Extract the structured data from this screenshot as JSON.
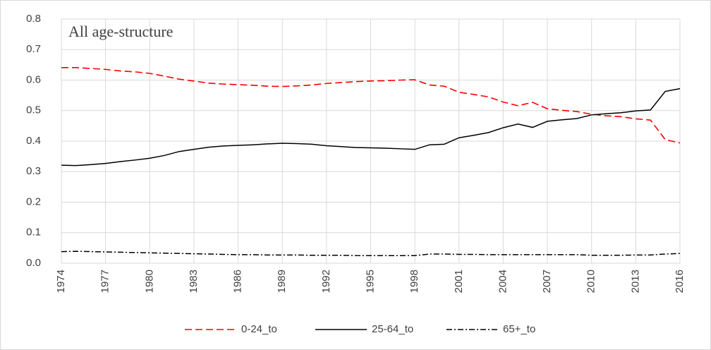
{
  "chart_data": {
    "type": "line",
    "annotation": "All age-structure",
    "x": [
      1974,
      1975,
      1976,
      1977,
      1978,
      1979,
      1980,
      1981,
      1982,
      1983,
      1984,
      1985,
      1986,
      1987,
      1988,
      1989,
      1990,
      1991,
      1992,
      1993,
      1994,
      1995,
      1996,
      1997,
      1998,
      1999,
      2000,
      2001,
      2002,
      2003,
      2004,
      2005,
      2006,
      2007,
      2008,
      2009,
      2010,
      2011,
      2012,
      2013,
      2014,
      2015,
      2016
    ],
    "series": [
      {
        "name": "0-24_to",
        "color": "#ff0000",
        "dash": "dashed",
        "values": [
          0.641,
          0.641,
          0.638,
          0.635,
          0.63,
          0.627,
          0.622,
          0.613,
          0.603,
          0.597,
          0.59,
          0.587,
          0.585,
          0.583,
          0.58,
          0.579,
          0.581,
          0.584,
          0.589,
          0.592,
          0.595,
          0.597,
          0.598,
          0.6,
          0.601,
          0.584,
          0.58,
          0.56,
          0.553,
          0.545,
          0.528,
          0.516,
          0.527,
          0.506,
          0.501,
          0.497,
          0.488,
          0.483,
          0.48,
          0.473,
          0.469,
          0.405,
          0.394
        ]
      },
      {
        "name": "25-64_to",
        "color": "#000000",
        "dash": "solid",
        "values": [
          0.321,
          0.32,
          0.323,
          0.327,
          0.333,
          0.338,
          0.344,
          0.353,
          0.366,
          0.373,
          0.38,
          0.384,
          0.386,
          0.388,
          0.391,
          0.393,
          0.392,
          0.39,
          0.385,
          0.382,
          0.379,
          0.378,
          0.377,
          0.375,
          0.373,
          0.388,
          0.39,
          0.411,
          0.419,
          0.428,
          0.444,
          0.456,
          0.445,
          0.465,
          0.47,
          0.474,
          0.486,
          0.49,
          0.493,
          0.499,
          0.502,
          0.563,
          0.572
        ]
      },
      {
        "name": "65+_to",
        "color": "#000000",
        "dash": "dashdot",
        "values": [
          0.038,
          0.039,
          0.038,
          0.037,
          0.036,
          0.035,
          0.034,
          0.033,
          0.032,
          0.031,
          0.03,
          0.029,
          0.028,
          0.028,
          0.027,
          0.027,
          0.027,
          0.026,
          0.026,
          0.026,
          0.025,
          0.025,
          0.025,
          0.025,
          0.025,
          0.03,
          0.03,
          0.029,
          0.029,
          0.028,
          0.028,
          0.028,
          0.028,
          0.028,
          0.028,
          0.028,
          0.026,
          0.026,
          0.026,
          0.027,
          0.027,
          0.03,
          0.032
        ]
      }
    ],
    "xlim": [
      1974,
      2016
    ],
    "xticks": [
      1974,
      1977,
      1980,
      1983,
      1986,
      1989,
      1992,
      1995,
      1998,
      2001,
      2004,
      2007,
      2010,
      2013,
      2016
    ],
    "ylim": [
      0,
      0.8
    ],
    "yticks": [
      {
        "value": 0,
        "label": "0.0"
      },
      0.1,
      0.2,
      0.3,
      0.4,
      0.5,
      0.6,
      0.7,
      0.8
    ],
    "grid": true,
    "legend": "bottom"
  }
}
